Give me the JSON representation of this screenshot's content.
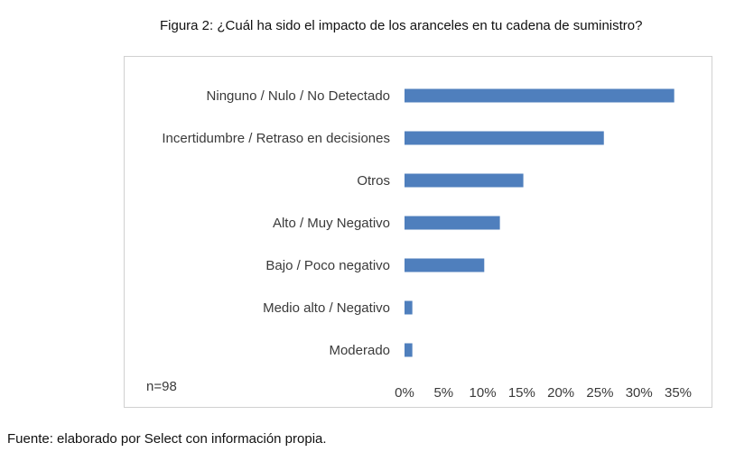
{
  "caption": "Figura 2: ¿Cuál ha sido el impacto de los aranceles en tu cadena de suministro?",
  "source": "Fuente: elaborado por Select con información propia.",
  "chart_data": {
    "type": "bar",
    "orientation": "horizontal",
    "title": "",
    "xlabel": "",
    "ylabel": "",
    "categories": [
      "Ninguno / Nulo / No Detectado",
      "Incertidumbre / Retraso en decisiones",
      "Otros",
      "Alto / Muy Negativo",
      "Bajo / Poco negativo",
      "Medio alto / Negativo",
      "Moderado"
    ],
    "values": [
      34.5,
      25.5,
      15.2,
      12.2,
      10.2,
      1.0,
      1.0
    ],
    "value_unit": "%",
    "xlim": [
      0,
      35
    ],
    "ticks": [
      "0%",
      "5%",
      "10%",
      "15%",
      "20%",
      "25%",
      "30%",
      "35%"
    ],
    "tick_values": [
      0,
      5,
      10,
      15,
      20,
      25,
      30,
      35
    ],
    "bar_color": "#4f7fbd",
    "grid": false,
    "legend": "none",
    "annotation": "n=98"
  }
}
